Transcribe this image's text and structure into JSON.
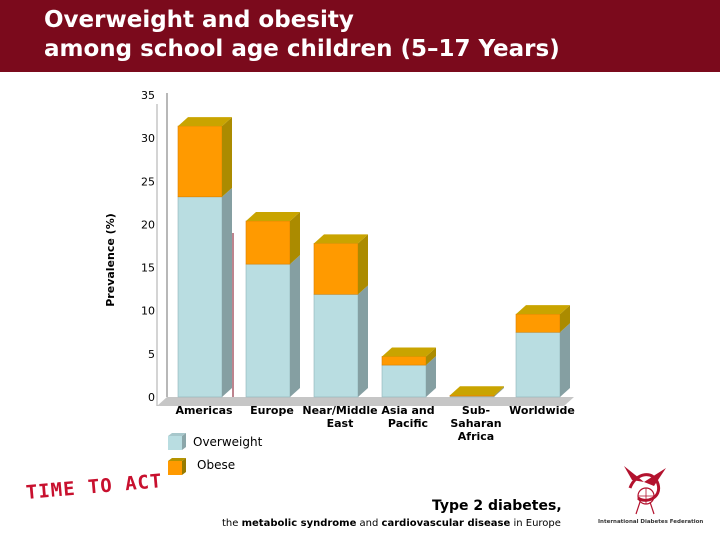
{
  "slide": {
    "title_line1": "Overweight and obesity",
    "title_line2": "among school age children (5–17 Years)",
    "time_to_act": "TIME TO ACT",
    "footer_headline": "Type 2 diabetes,",
    "footer_sub": {
      "part1": "the ",
      "part2": "metabolic syndrome",
      "part3": " and ",
      "part4": "cardiovascular disease",
      "part5": " in Europe"
    },
    "logo_text": "International Diabetes Federation"
  },
  "colors": {
    "title_bar": "#7b0a1c",
    "overweight": "#b9dde1",
    "obese": "#ff9a00",
    "obese_top": "#c9a400",
    "time_to_act": "#c8102e",
    "logo_red": "#b3122e"
  },
  "chart_data": {
    "type": "bar",
    "stacked": true,
    "three_d": true,
    "categories": [
      "Americas",
      "Europe",
      "Near/Middle East",
      "Asia and Pacific",
      "Sub-Saharan Africa",
      "Worldwide"
    ],
    "category_label_lines": [
      [
        "Americas"
      ],
      [
        "Europe"
      ],
      [
        "Near/Middle",
        "East"
      ],
      [
        "Asia and",
        "Pacific"
      ],
      [
        "Sub-",
        "Saharan",
        "Africa"
      ],
      [
        "Worldwide"
      ]
    ],
    "series": [
      {
        "name": "Overweight",
        "values": [
          23.2,
          15.4,
          11.9,
          3.7,
          0.1,
          7.5
        ]
      },
      {
        "name": "Obese",
        "values": [
          8.2,
          5.0,
          5.9,
          1.0,
          0.1,
          2.1
        ]
      }
    ],
    "ylabel": "Prevalence (%)",
    "xlabel": "",
    "ylim": [
      0,
      35
    ],
    "yticks": [
      0,
      5,
      10,
      15,
      20,
      25,
      30,
      35
    ],
    "legend": [
      "Overweight",
      "Obese"
    ],
    "legend_position": "bottom-left",
    "grid": false
  }
}
